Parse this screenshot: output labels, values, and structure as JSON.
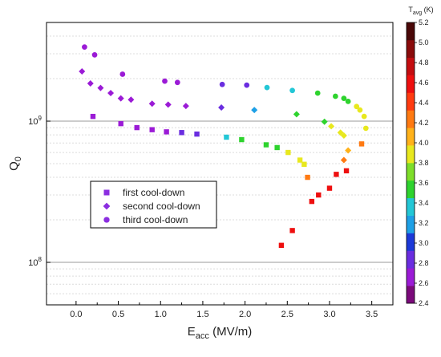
{
  "chart_data": {
    "type": "scatter",
    "xlabel": "E",
    "xlabel_sub": "acc",
    "xlabel_unit": " (MV/m)",
    "ylabel": "Q",
    "ylabel_sub": "0",
    "xlim": [
      -0.35,
      3.75
    ],
    "x_ticks": [
      0.0,
      0.5,
      1.0,
      1.5,
      2.0,
      2.5,
      3.0,
      3.5
    ],
    "x_tick_labels": [
      "0.0",
      "0.5",
      "1.0",
      "1.5",
      "2.0",
      "2.5",
      "3.0",
      "3.5"
    ],
    "y_scale": "log",
    "ylim": [
      50000000.0,
      5000000000.0
    ],
    "y_ticks": [
      100000000.0,
      1000000000.0
    ],
    "y_tick_labels": [
      "10^8",
      "10^9"
    ],
    "grid": "horizontal major and minor (log)",
    "legend_position": "center-left",
    "colorbar": {
      "title": "T",
      "title_sub": "avg",
      "title_unit": " (K)",
      "range": [
        2.4,
        5.2
      ],
      "ticks": [
        2.4,
        2.6,
        2.8,
        3.0,
        3.2,
        3.4,
        3.6,
        3.8,
        4.0,
        4.2,
        4.4,
        4.6,
        4.8,
        5.0,
        5.2
      ],
      "tick_labels": [
        "2.4",
        "2.6",
        "2.8",
        "3.0",
        "3.2",
        "3.4",
        "3.6",
        "3.8",
        "4.0",
        "4.2",
        "4.4",
        "4.6",
        "4.8",
        "5.0",
        "5.2"
      ],
      "colors": [
        "#7b0a7b",
        "#9b1bd6",
        "#6a2de0",
        "#1c39d8",
        "#1ea0e6",
        "#23c7d6",
        "#2ed32e",
        "#7ede2a",
        "#e8e81e",
        "#ffb21a",
        "#ff7a12",
        "#ff3b10",
        "#ee0f0f",
        "#c40d10",
        "#8a0b0b",
        "#4a0808"
      ]
    },
    "series": [
      {
        "name": "first cool-down",
        "marker": "square",
        "points": [
          {
            "x": 0.2,
            "y": 1080000000.0,
            "t": 2.6
          },
          {
            "x": 0.53,
            "y": 960000000.0,
            "t": 2.6
          },
          {
            "x": 0.72,
            "y": 900000000.0,
            "t": 2.6
          },
          {
            "x": 0.9,
            "y": 870000000.0,
            "t": 2.6
          },
          {
            "x": 1.07,
            "y": 840000000.0,
            "t": 2.6
          },
          {
            "x": 1.25,
            "y": 830000000.0,
            "t": 2.9
          },
          {
            "x": 1.43,
            "y": 810000000.0,
            "t": 2.9
          },
          {
            "x": 1.78,
            "y": 770000000.0,
            "t": 3.3
          },
          {
            "x": 1.96,
            "y": 740000000.0,
            "t": 3.5
          },
          {
            "x": 2.25,
            "y": 680000000.0,
            "t": 3.5
          },
          {
            "x": 2.38,
            "y": 650000000.0,
            "t": 3.5
          },
          {
            "x": 2.51,
            "y": 600000000.0,
            "t": 3.8
          },
          {
            "x": 2.65,
            "y": 530000000.0,
            "t": 3.9
          },
          {
            "x": 2.7,
            "y": 495000000.0,
            "t": 3.9
          },
          {
            "x": 2.74,
            "y": 400000000.0,
            "t": 4.2
          },
          {
            "x": 2.79,
            "y": 270000000.0,
            "t": 4.5
          },
          {
            "x": 2.56,
            "y": 168000000.0,
            "t": 4.6
          },
          {
            "x": 2.43,
            "y": 132000000.0,
            "t": 4.6
          },
          {
            "x": 2.87,
            "y": 300000000.0,
            "t": 4.6
          },
          {
            "x": 3.0,
            "y": 335000000.0,
            "t": 4.6
          },
          {
            "x": 3.08,
            "y": 420000000.0,
            "t": 4.6
          },
          {
            "x": 3.2,
            "y": 445000000.0,
            "t": 4.5
          },
          {
            "x": 3.38,
            "y": 690000000.0,
            "t": 4.3
          }
        ]
      },
      {
        "name": "second cool-down",
        "marker": "diamond",
        "points": [
          {
            "x": 0.07,
            "y": 2250000000.0,
            "t": 2.6
          },
          {
            "x": 0.17,
            "y": 1850000000.0,
            "t": 2.6
          },
          {
            "x": 0.29,
            "y": 1720000000.0,
            "t": 2.6
          },
          {
            "x": 0.41,
            "y": 1580000000.0,
            "t": 2.6
          },
          {
            "x": 0.53,
            "y": 1450000000.0,
            "t": 2.6
          },
          {
            "x": 0.65,
            "y": 1420000000.0,
            "t": 2.6
          },
          {
            "x": 0.9,
            "y": 1330000000.0,
            "t": 2.6
          },
          {
            "x": 1.09,
            "y": 1310000000.0,
            "t": 2.6
          },
          {
            "x": 1.3,
            "y": 1280000000.0,
            "t": 2.7
          },
          {
            "x": 1.72,
            "y": 1250000000.0,
            "t": 2.9
          },
          {
            "x": 2.11,
            "y": 1200000000.0,
            "t": 3.2
          },
          {
            "x": 2.61,
            "y": 1120000000.0,
            "t": 3.5
          },
          {
            "x": 2.94,
            "y": 990000000.0,
            "t": 3.6
          },
          {
            "x": 3.02,
            "y": 920000000.0,
            "t": 3.8
          },
          {
            "x": 3.13,
            "y": 830000000.0,
            "t": 3.9
          },
          {
            "x": 3.17,
            "y": 790000000.0,
            "t": 3.8
          },
          {
            "x": 3.22,
            "y": 620000000.0,
            "t": 4.1
          },
          {
            "x": 3.17,
            "y": 530000000.0,
            "t": 4.2
          }
        ]
      },
      {
        "name": "third cool-down",
        "marker": "circle",
        "points": [
          {
            "x": 0.1,
            "y": 3350000000.0,
            "t": 2.6
          },
          {
            "x": 0.22,
            "y": 2950000000.0,
            "t": 2.6
          },
          {
            "x": 0.55,
            "y": 2150000000.0,
            "t": 2.6
          },
          {
            "x": 1.05,
            "y": 1920000000.0,
            "t": 2.6
          },
          {
            "x": 1.2,
            "y": 1880000000.0,
            "t": 2.6
          },
          {
            "x": 1.73,
            "y": 1820000000.0,
            "t": 2.9
          },
          {
            "x": 2.02,
            "y": 1800000000.0,
            "t": 2.9
          },
          {
            "x": 2.26,
            "y": 1730000000.0,
            "t": 3.3
          },
          {
            "x": 2.56,
            "y": 1650000000.0,
            "t": 3.3
          },
          {
            "x": 2.86,
            "y": 1580000000.0,
            "t": 3.5
          },
          {
            "x": 3.07,
            "y": 1500000000.0,
            "t": 3.5
          },
          {
            "x": 3.17,
            "y": 1450000000.0,
            "t": 3.5
          },
          {
            "x": 3.22,
            "y": 1380000000.0,
            "t": 3.6
          },
          {
            "x": 3.32,
            "y": 1270000000.0,
            "t": 3.8
          },
          {
            "x": 3.36,
            "y": 1200000000.0,
            "t": 3.8
          },
          {
            "x": 3.41,
            "y": 1080000000.0,
            "t": 3.8
          },
          {
            "x": 3.43,
            "y": 890000000.0,
            "t": 3.9
          }
        ]
      }
    ]
  }
}
